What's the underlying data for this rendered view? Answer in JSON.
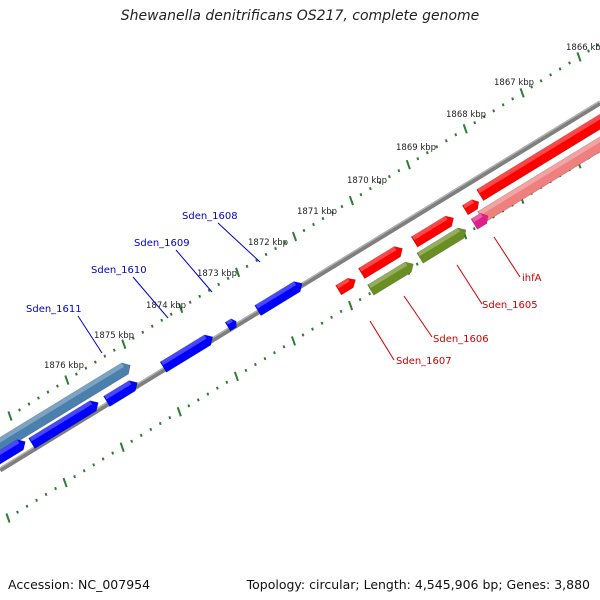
{
  "title": "Shewanella denitrificans OS217, complete genome",
  "accession": "Accession: NC_007954",
  "summary": "Topology: circular; Length: 4,545,906 bp; Genes: 3,880",
  "tick_labels": [
    "1866 kbp",
    "1867 kbp",
    "1868 kbp",
    "1869 kbp",
    "1870 kbp",
    "1871 kbp",
    "1872 kbp",
    "1873 kbp",
    "1874 kbp",
    "1875 kbp",
    "1876 kbp"
  ],
  "gene_labels": {
    "blue": [
      "Sden_1608",
      "Sden_1609",
      "Sden_1610",
      "Sden_1611"
    ],
    "red": [
      "ihfA",
      "Sden_1605",
      "Sden_1606",
      "Sden_1607"
    ]
  },
  "colors": {
    "backbone": "#808080",
    "tick": "#2e7d32",
    "blue_gene": "#0000ff",
    "steel_gene": "#4a7fae",
    "red_gene": "#ff0000",
    "pink_gene": "#f08080",
    "magenta_gene": "#e0208a",
    "olive_gene": "#6b8e23",
    "label_blue": "#0000cc",
    "label_red": "#cc0000",
    "tick_label": "#222222"
  }
}
